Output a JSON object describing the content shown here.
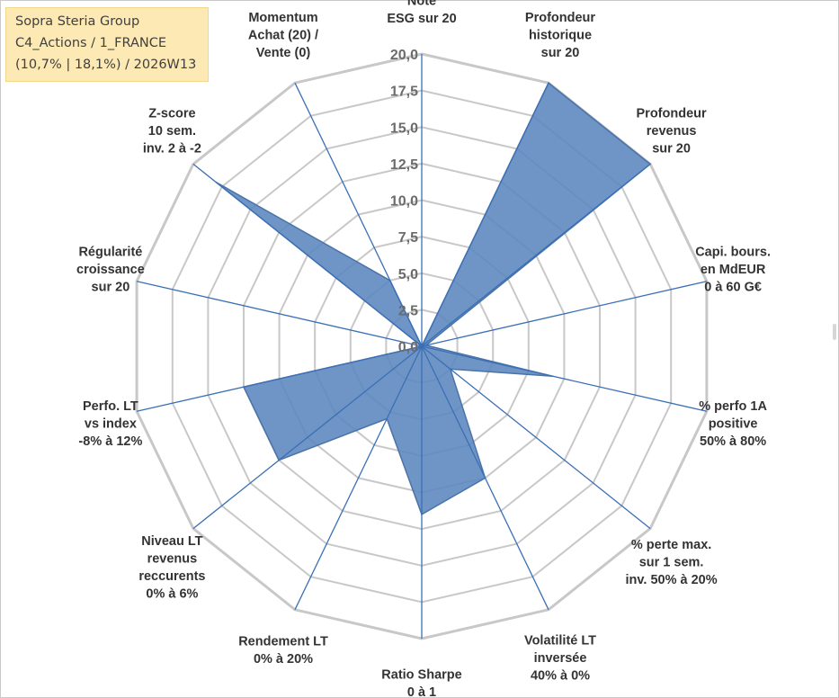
{
  "info": {
    "line1": "Sopra Steria Group",
    "line2": "C4_Actions / 1_FRANCE",
    "line3": "(10,7% | 18,1%) / 2026W13"
  },
  "colors": {
    "fill": "#5a86be",
    "stroke": "#4a73a8",
    "spoke": "#3b6fb6",
    "grid": "#c8c8c8",
    "info_bg": "#fde9b3"
  },
  "chart_data": {
    "type": "radar",
    "rmin": 0,
    "rmax": 20,
    "tick_labels": [
      "0,0",
      "2,5",
      "5,0",
      "7,5",
      "10,0",
      "12,5",
      "15,0",
      "17,5",
      "20,0"
    ],
    "axes": [
      {
        "lines": [
          "Note",
          "ESG sur 20"
        ],
        "value": 0.0
      },
      {
        "lines": [
          "Profondeur",
          "historique",
          "sur 20"
        ],
        "value": 20.0
      },
      {
        "lines": [
          "Profondeur",
          "revenus",
          "sur 20"
        ],
        "value": 20.0
      },
      {
        "lines": [
          "Capi. bours.",
          "en MdEUR",
          "0 à 60 G€"
        ],
        "value": 0.3
      },
      {
        "lines": [
          "% perfo 1A",
          "positive",
          "50% à 80%"
        ],
        "value": 9.2
      },
      {
        "lines": [
          "% perte max.",
          "sur 1 sem.",
          "inv. 50% à 20%"
        ],
        "value": 2.5
      },
      {
        "lines": [
          "Volatilité LT",
          "inversée",
          "40% à 0%"
        ],
        "value": 10.0
      },
      {
        "lines": [
          "Ratio Sharpe",
          "0 à 1"
        ],
        "value": 11.5
      },
      {
        "lines": [
          "Rendement LT",
          "0% à 20%"
        ],
        "value": 5.5
      },
      {
        "lines": [
          "Niveau LT",
          "revenus",
          "reccurents",
          "0% à 6%"
        ],
        "value": 12.5
      },
      {
        "lines": [
          "Perfo. LT",
          "vs index",
          "-8% à 12%"
        ],
        "value": 12.5
      },
      {
        "lines": [
          "Régularité",
          "croissance",
          "sur 20"
        ],
        "value": 0.0
      },
      {
        "lines": [
          "Z-score",
          "10 sem.",
          "inv. 2 à -2"
        ],
        "value": 18.0
      },
      {
        "lines": [
          "Momentum",
          "Achat (20) /",
          "Vente (0)"
        ],
        "value": 5.0
      }
    ]
  }
}
